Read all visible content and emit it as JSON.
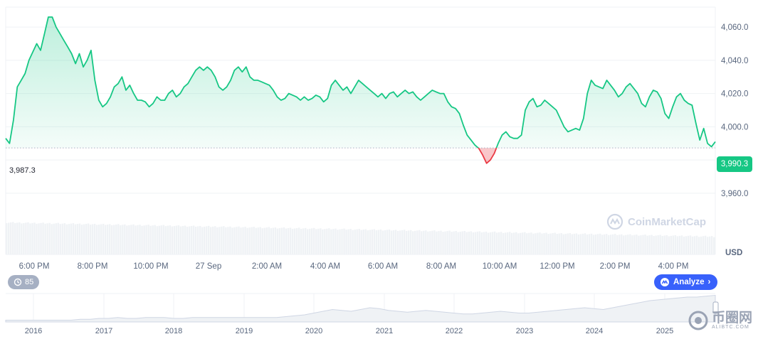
{
  "chart_data": {
    "type": "line",
    "series": [
      {
        "values": [
          3993,
          3990,
          4004,
          4024,
          4028,
          4032,
          4040,
          4045,
          4050,
          4046,
          4056,
          4066,
          4066,
          4060,
          4056,
          4052,
          4048,
          4044,
          4038,
          4044,
          4036,
          4040,
          4046,
          4028,
          4016,
          4012,
          4014,
          4018,
          4024,
          4026,
          4030,
          4022,
          4025,
          4020,
          4016,
          4016,
          4015,
          4012,
          4014,
          4018,
          4016,
          4016,
          4020,
          4022,
          4018,
          4020,
          4024,
          4026,
          4030,
          4034,
          4036,
          4034,
          4036,
          4034,
          4030,
          4024,
          4022,
          4024,
          4028,
          4034,
          4036,
          4033,
          4036,
          4030,
          4028,
          4028,
          4027,
          4026,
          4025,
          4022,
          4018,
          4016,
          4017,
          4020,
          4019,
          4018,
          4016,
          4018,
          4016,
          4017,
          4019,
          4018,
          4015,
          4017,
          4025,
          4028,
          4025,
          4022,
          4024,
          4020,
          4024,
          4028,
          4026,
          4024,
          4022,
          4020,
          4018,
          4020,
          4017,
          4020,
          4021,
          4018,
          4020,
          4022,
          4020,
          4021,
          4018,
          4016,
          4018,
          4020,
          4022,
          4021,
          4020,
          4020,
          4015,
          4012,
          4011,
          4008,
          4001,
          3995,
          3992,
          3989,
          3987,
          3983,
          3978,
          3980,
          3984,
          3990,
          3995,
          3997,
          3994,
          3993,
          3993,
          3995,
          4010,
          4015,
          4017,
          4012,
          4013,
          4016,
          4014,
          4012,
          4010,
          4005,
          4000,
          3997,
          3998,
          3999,
          3998,
          4005,
          4020,
          4028,
          4025,
          4024,
          4023,
          4028,
          4025,
          4022,
          4018,
          4020,
          4024,
          4026,
          4023,
          4020,
          4014,
          4012,
          4018,
          4022,
          4021,
          4017,
          4008,
          4005,
          4012,
          4018,
          4020,
          4016,
          4014,
          4013,
          4002,
          3992,
          3999,
          3990,
          3988,
          3991
        ],
        "color": "#16c784"
      }
    ],
    "open_price": 3987.3,
    "open_price_label": "3,987.3",
    "current_price_label": "3,990.3",
    "ylim": [
      3945,
      4072
    ],
    "y_ticks": [
      {
        "value": 3960,
        "label": "3,960.0"
      },
      {
        "value": 3980,
        "label": "3,980.0"
      },
      {
        "value": 4000,
        "label": "4,000.0"
      },
      {
        "value": 4020,
        "label": "4,020.0"
      },
      {
        "value": 4040,
        "label": "4,040.0"
      },
      {
        "value": 4060,
        "label": "4,060.0"
      }
    ],
    "y_unit": "USD",
    "x_tick_labels": [
      "6:00 PM",
      "8:00 PM",
      "10:00 PM",
      "27 Sep",
      "2:00 AM",
      "4:00 AM",
      "6:00 AM",
      "8:00 AM",
      "10:00 AM",
      "12:00 PM",
      "2:00 PM",
      "4:00 PM"
    ],
    "navigator_labels": [
      "2016",
      "2017",
      "2018",
      "2019",
      "2020",
      "2021",
      "2022",
      "2023",
      "2024",
      "2025"
    ],
    "navigator_values": [
      2,
      2,
      2,
      2,
      2,
      2,
      2,
      2,
      3,
      3,
      4,
      4,
      5,
      4,
      4,
      5,
      5,
      5,
      4,
      4,
      5,
      5,
      5,
      5,
      5,
      5,
      5,
      5,
      5,
      5,
      6,
      7,
      8,
      10,
      12,
      14,
      13,
      12,
      14,
      16,
      15,
      13,
      12,
      11,
      12,
      13,
      12,
      11,
      10,
      9,
      9,
      10,
      11,
      12,
      11,
      10,
      10,
      11,
      12,
      13,
      14,
      15,
      16,
      15,
      14,
      16,
      18,
      20,
      22,
      24,
      25,
      26,
      27,
      28,
      28,
      29,
      30
    ],
    "grid": true,
    "line_color": "#16c784",
    "below_open_color": "#ea3943"
  },
  "events_count": "85",
  "analyze_label": "Analyze",
  "watermark": "CoinMarketCap",
  "site_watermark": "币圈网",
  "site_watermark_sub": "ALIBTC.COM"
}
